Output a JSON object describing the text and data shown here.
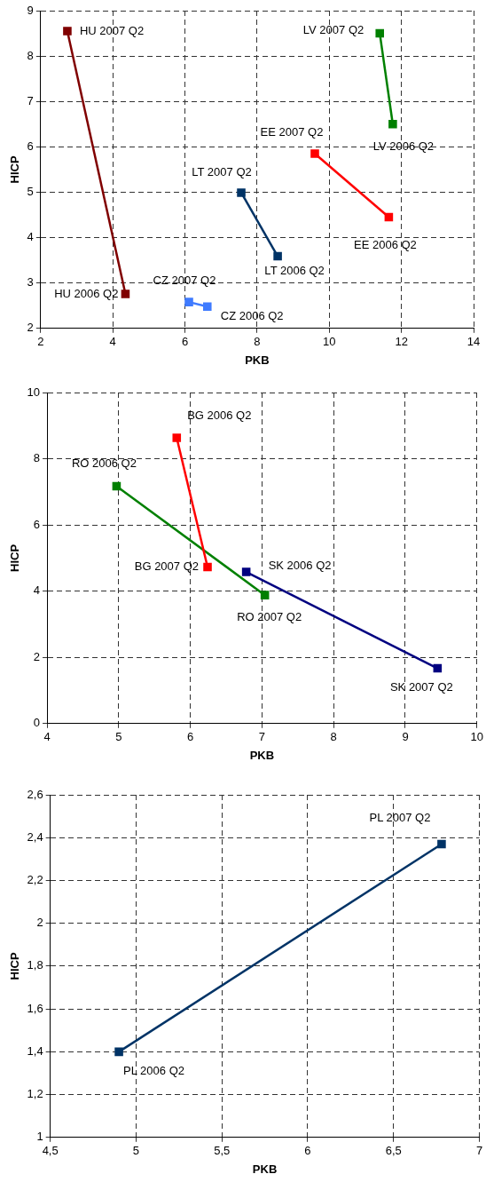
{
  "chart_data": [
    {
      "type": "line",
      "xlabel": "PKB",
      "ylabel": "HICP",
      "xlim": [
        2,
        14
      ],
      "ylim": [
        2,
        9
      ],
      "xticks": [
        2,
        4,
        6,
        8,
        10,
        12,
        14
      ],
      "yticks": [
        2,
        3,
        4,
        5,
        6,
        7,
        8,
        9
      ],
      "grid": true,
      "legend": false,
      "marker": "square",
      "line_style": "solid",
      "series": [
        {
          "color": "#800000",
          "x": [
            4.35,
            2.74
          ],
          "values": [
            2.76,
            8.55
          ]
        },
        {
          "color": "#008000",
          "x": [
            11.76,
            11.4
          ],
          "values": [
            6.5,
            8.5
          ]
        },
        {
          "color": "#ff0000",
          "x": [
            11.65,
            9.6
          ],
          "values": [
            4.45,
            5.85
          ]
        },
        {
          "color": "#003366",
          "x": [
            8.57,
            7.56
          ],
          "values": [
            3.59,
            4.99
          ]
        },
        {
          "color": "#3f7bff",
          "x": [
            6.62,
            6.11
          ],
          "values": [
            2.48,
            2.58
          ]
        }
      ],
      "annotations": [
        {
          "text": "HU 2007 Q2",
          "x": 2.74,
          "y": 8.55
        },
        {
          "text": "HU 2006 Q2",
          "x": 4.35,
          "y": 2.76
        },
        {
          "text": "LV 2007 Q2",
          "x": 11.4,
          "y": 8.5
        },
        {
          "text": "LV 2006 Q2",
          "x": 11.76,
          "y": 6.5
        },
        {
          "text": "EE 2007 Q2",
          "x": 9.6,
          "y": 5.85
        },
        {
          "text": "EE 2006 Q2",
          "x": 11.65,
          "y": 4.45
        },
        {
          "text": "LT 2007 Q2",
          "x": 7.56,
          "y": 4.99
        },
        {
          "text": "LT 2006 Q2",
          "x": 8.57,
          "y": 3.59
        },
        {
          "text": "CZ 2007 Q2",
          "x": 6.11,
          "y": 2.58
        },
        {
          "text": "CZ 2006 Q2",
          "x": 6.62,
          "y": 2.48
        }
      ]
    },
    {
      "type": "line",
      "xlabel": "PKB",
      "ylabel": "HICP",
      "xlim": [
        4,
        10
      ],
      "ylim": [
        0,
        10
      ],
      "xticks": [
        4,
        5,
        6,
        7,
        8,
        9,
        10
      ],
      "yticks": [
        0,
        2,
        4,
        6,
        8,
        10
      ],
      "grid": true,
      "legend": false,
      "marker": "square",
      "line_style": "solid",
      "series": [
        {
          "color": "#ff0000",
          "x": [
            5.81,
            6.24
          ],
          "values": [
            8.63,
            4.73
          ]
        },
        {
          "color": "#008000",
          "x": [
            4.97,
            7.04
          ],
          "values": [
            7.17,
            3.88
          ]
        },
        {
          "color": "#000080",
          "x": [
            6.78,
            9.45
          ],
          "values": [
            4.58,
            1.67
          ]
        }
      ],
      "annotations": [
        {
          "text": "BG 2006 Q2",
          "x": 5.81,
          "y": 8.63
        },
        {
          "text": "BG 2007 Q2",
          "x": 6.24,
          "y": 4.73
        },
        {
          "text": "RO 2006 Q2",
          "x": 4.97,
          "y": 7.17
        },
        {
          "text": "RO 2007 Q2",
          "x": 7.04,
          "y": 3.88
        },
        {
          "text": "SK 2006 Q2",
          "x": 6.78,
          "y": 4.58
        },
        {
          "text": "SK 2007 Q2",
          "x": 9.45,
          "y": 1.67
        }
      ]
    },
    {
      "type": "line",
      "xlabel": "PKB",
      "ylabel": "HICP",
      "xlim": [
        4.5,
        7
      ],
      "ylim": [
        1,
        2.6
      ],
      "xticks": [
        {
          "value": 4.5,
          "label": "4,5"
        },
        5,
        {
          "value": 5.5,
          "label": "5,5"
        },
        6,
        {
          "value": 6.5,
          "label": "6,5"
        },
        7
      ],
      "yticks": [
        1,
        {
          "value": 1.2,
          "label": "1,2"
        },
        {
          "value": 1.4,
          "label": "1,4"
        },
        {
          "value": 1.6,
          "label": "1,6"
        },
        {
          "value": 1.8,
          "label": "1,8"
        },
        2,
        {
          "value": 2.2,
          "label": "2,2"
        },
        {
          "value": 2.4,
          "label": "2,4"
        },
        {
          "value": 2.6,
          "label": "2,6"
        }
      ],
      "grid": true,
      "legend": false,
      "marker": "square",
      "line_style": "solid",
      "series": [
        {
          "color": "#003366",
          "x": [
            4.9,
            6.78
          ],
          "values": [
            1.4,
            2.37
          ]
        }
      ],
      "annotations": [
        {
          "text": "PL 2007 Q2",
          "x": 6.78,
          "y": 2.37
        },
        {
          "text": "PL 2006 Q2",
          "x": 4.9,
          "y": 1.4
        }
      ]
    }
  ]
}
